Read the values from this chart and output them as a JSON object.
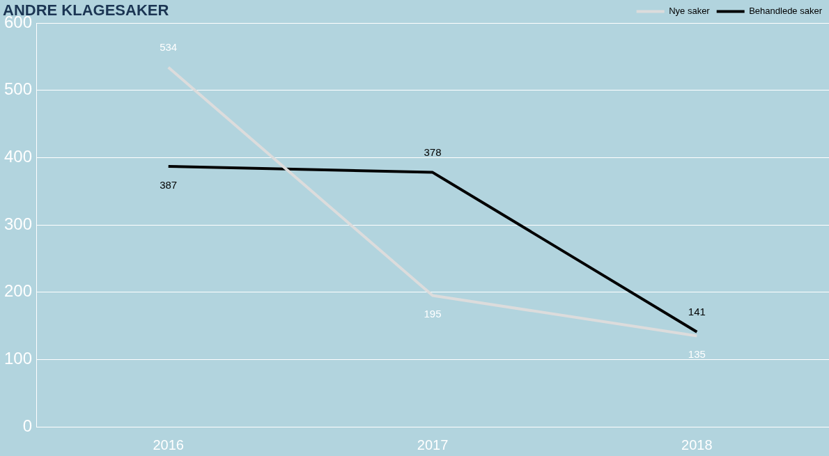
{
  "chart_data": {
    "type": "line",
    "title": "ANDRE KLAGESAKER",
    "categories": [
      "2016",
      "2017",
      "2018"
    ],
    "series": [
      {
        "name": "Nye saker",
        "color": "#dcdcdc",
        "values": [
          534,
          195,
          135
        ]
      },
      {
        "name": "Behandlede saker",
        "color": "#000000",
        "values": [
          387,
          378,
          141
        ]
      }
    ],
    "ylim": [
      0,
      600
    ],
    "yticks": [
      0,
      100,
      200,
      300,
      400,
      500,
      600
    ],
    "grid": "y",
    "legend": "top right",
    "data_labels": true,
    "marker": "none",
    "line_style": "solid"
  }
}
